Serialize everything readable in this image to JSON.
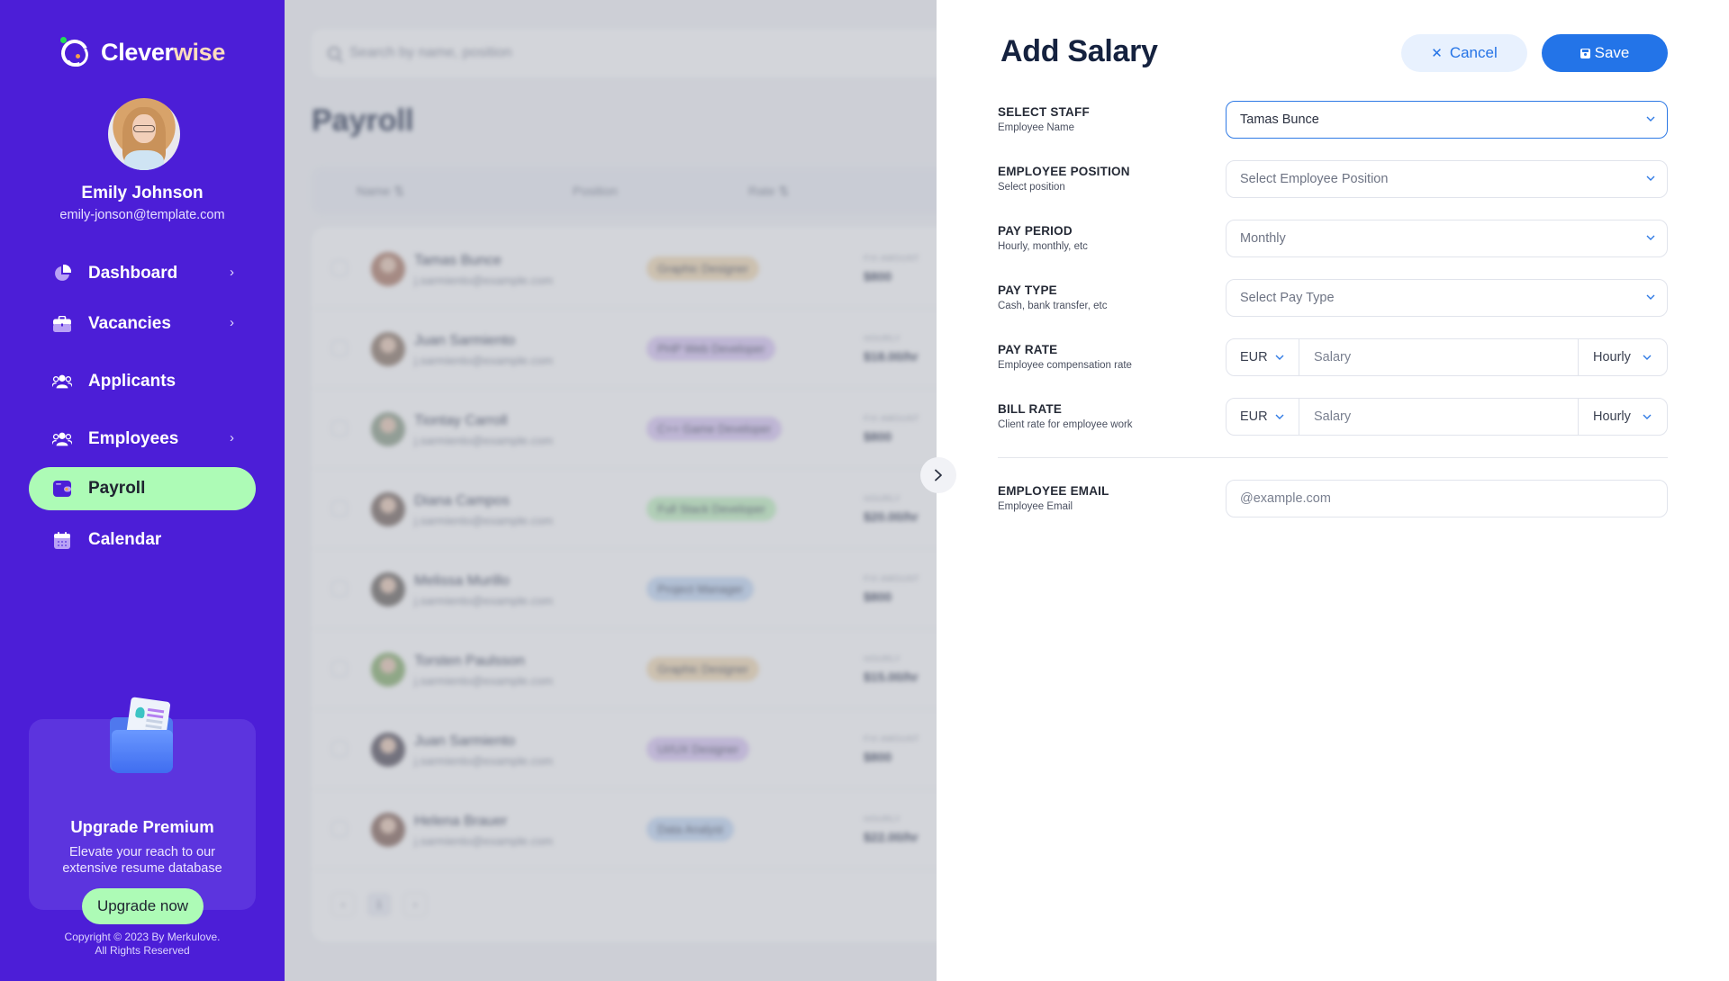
{
  "sidebar": {
    "brand": {
      "part1": "Clever",
      "part2": "wise"
    },
    "user": {
      "name": "Emily Johnson",
      "email": "emily-jonson@template.com"
    },
    "nav": [
      {
        "label": "Dashboard",
        "icon": "pie-chart-icon",
        "has_chevron": true,
        "active": false
      },
      {
        "label": "Vacancies",
        "icon": "briefcase-icon",
        "has_chevron": true,
        "active": false
      },
      {
        "label": "Applicants",
        "icon": "users-icon",
        "has_chevron": false,
        "active": false
      },
      {
        "label": "Employees",
        "icon": "users-icon",
        "has_chevron": true,
        "active": false
      },
      {
        "label": "Payroll",
        "icon": "wallet-icon",
        "has_chevron": false,
        "active": true
      },
      {
        "label": "Calendar",
        "icon": "calendar-icon",
        "has_chevron": false,
        "active": false
      }
    ],
    "promo": {
      "title": "Upgrade Premium",
      "description": "Elevate your reach to our extensive resume database",
      "button": "Upgrade now"
    },
    "copyright_line1": "Copyright © 2023 By Merkulove.",
    "copyright_line2": "All Rights Reserved"
  },
  "main": {
    "search_placeholder": "Search by name, position",
    "title": "Payroll",
    "columns": {
      "name": "Name ⇅",
      "position": "Position",
      "rate": "Rate ⇅"
    },
    "rows": [
      {
        "name": "Tamas Bunce",
        "email": "j.sarmiento@example.com",
        "position": "Graphic Designer",
        "pill_color": "#f3dcb6",
        "rate_label": "FIX AMOUNT",
        "rate": "$800",
        "avatar_color": "#b07f6b"
      },
      {
        "name": "Juan Sarmiento",
        "email": "j.sarmiento@example.com",
        "position": "PHP Web Developer",
        "pill_color": "#dccaf6",
        "rate_label": "HOURLY",
        "rate": "$18.00/hr",
        "avatar_color": "#8f7a6a"
      },
      {
        "name": "Tiontay Carroll",
        "email": "j.sarmiento@example.com",
        "position": "C++ Game Developer",
        "pill_color": "#dccaf6",
        "rate_label": "FIX AMOUNT",
        "rate": "$800",
        "avatar_color": "#8fa08a"
      },
      {
        "name": "Diana Campos",
        "email": "j.sarmiento@example.com",
        "position": "Full Stack Developer",
        "pill_color": "#c4f3c2",
        "rate_label": "HOURLY",
        "rate": "$20.00/hr",
        "avatar_color": "#7a6a62"
      },
      {
        "name": "Melissa Murillo",
        "email": "j.sarmiento@example.com",
        "position": "Project Manager",
        "pill_color": "#c6dbf6",
        "rate_label": "FIX AMOUNT",
        "rate": "$800",
        "avatar_color": "#6e6862"
      },
      {
        "name": "Torsten Paulsson",
        "email": "j.sarmiento@example.com",
        "position": "Graphic Designer",
        "pill_color": "#f3dcb6",
        "rate_label": "HOURLY",
        "rate": "$15.00/hr",
        "avatar_color": "#8ab070"
      },
      {
        "name": "Juan Sarmiento",
        "email": "j.sarmiento@example.com",
        "position": "UI/UX Designer",
        "pill_color": "#dccaf6",
        "rate_label": "FIX AMOUNT",
        "rate": "$800",
        "avatar_color": "#5a5560"
      },
      {
        "name": "Helena Brauer",
        "email": "j.sarmiento@example.com",
        "position": "Data Analyst",
        "pill_color": "#c6dbf6",
        "rate_label": "HOURLY",
        "rate": "$22.00/hr",
        "avatar_color": "#8a6a5e"
      }
    ],
    "pager": {
      "prev": "‹",
      "current": "1",
      "next": "›"
    }
  },
  "drawer": {
    "title": "Add Salary",
    "cancel_label": "Cancel",
    "save_label": "Save",
    "fields": {
      "staff": {
        "label": "SELECT STAFF",
        "sub": "Employee Name",
        "value": "Tamas Bunce"
      },
      "position": {
        "label": "EMPLOYEE POSITION",
        "sub": "Select position",
        "placeholder": "Select Employee Position"
      },
      "period": {
        "label": "PAY PERIOD",
        "sub": "Hourly, monthly, etc",
        "value": "Monthly"
      },
      "pay_type": {
        "label": "PAY TYPE",
        "sub": "Cash, bank transfer, etc",
        "placeholder": "Select Pay Type"
      },
      "pay_rate": {
        "label": "PAY RATE",
        "sub": "Employee compensation rate",
        "currency": "EUR",
        "placeholder": "Salary",
        "period": "Hourly"
      },
      "bill_rate": {
        "label": "BILL RATE",
        "sub": "Client rate for employee work",
        "currency": "EUR",
        "placeholder": "Salary",
        "period": "Hourly"
      },
      "email": {
        "label": "EMPLOYEE EMAIL",
        "sub": "Employee Email",
        "placeholder": "@example.com"
      }
    }
  },
  "colors": {
    "sidebar_bg": "#4c1ed7",
    "active_nav": "#adfbb6",
    "primary_blue": "#2374e8",
    "cancel_bg": "#e8f1fe",
    "title_text": "#15223f"
  }
}
